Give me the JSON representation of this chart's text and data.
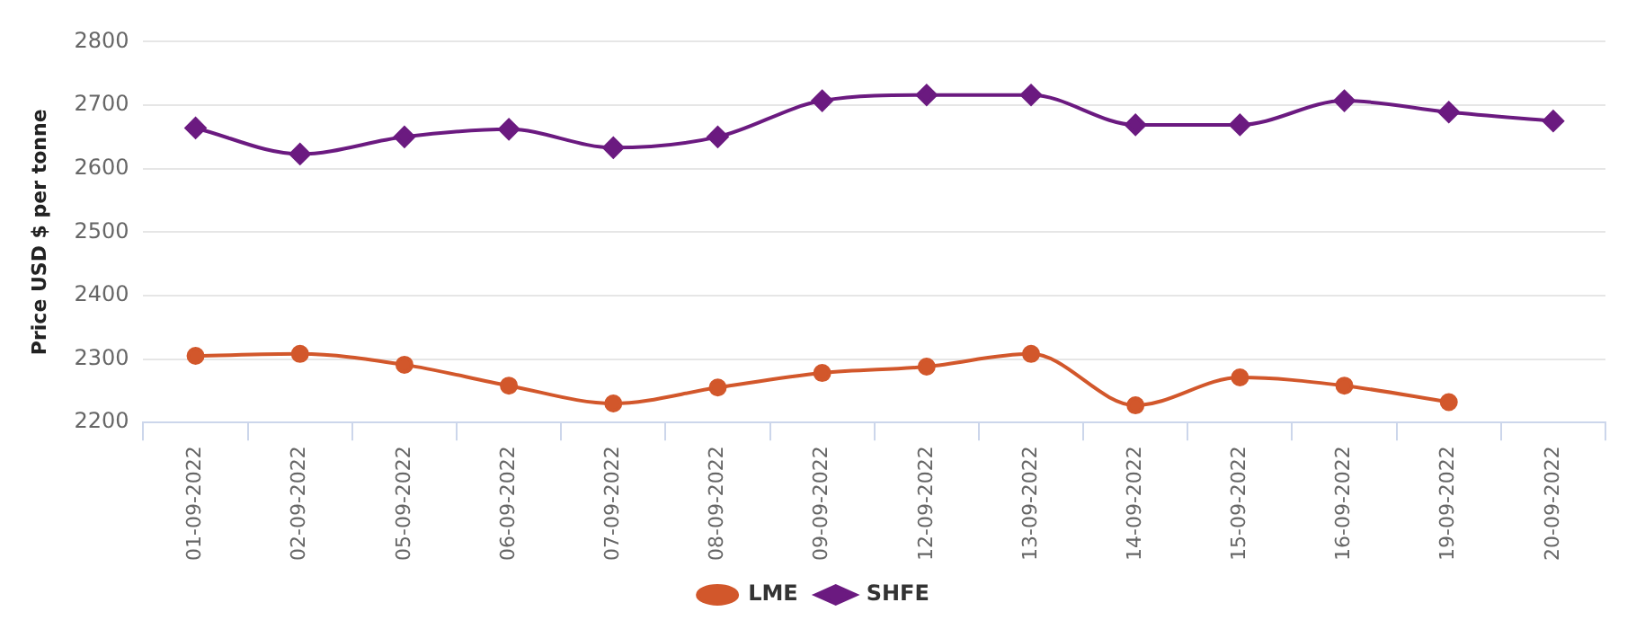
{
  "chart_data": {
    "type": "line",
    "ylabel": "Price USD $ per tonne",
    "categories": [
      "01-09-2022",
      "02-09-2022",
      "05-09-2022",
      "06-09-2022",
      "07-09-2022",
      "08-09-2022",
      "09-09-2022",
      "12-09-2022",
      "13-09-2022",
      "14-09-2022",
      "15-09-2022",
      "16-09-2022",
      "19-09-2022",
      "20-09-2022"
    ],
    "series": [
      {
        "name": "LME",
        "color": "#d2572b",
        "marker": "circle",
        "values": [
          2305,
          2308,
          2291,
          2258,
          2230,
          2255,
          2278,
          2288,
          2308,
          2227,
          2271,
          2258,
          2232,
          null
        ]
      },
      {
        "name": "SHFE",
        "color": "#6b1a80",
        "marker": "diamond",
        "values": [
          2664,
          2623,
          2650,
          2662,
          2633,
          2650,
          2707,
          2716,
          2716,
          2669,
          2669,
          2707,
          2689,
          2675
        ]
      }
    ],
    "ylim": [
      2200,
      2800
    ],
    "yticks": [
      2200,
      2300,
      2400,
      2500,
      2600,
      2700,
      2800
    ],
    "grid": "y",
    "legend": "bottom",
    "line_style": "solid"
  }
}
